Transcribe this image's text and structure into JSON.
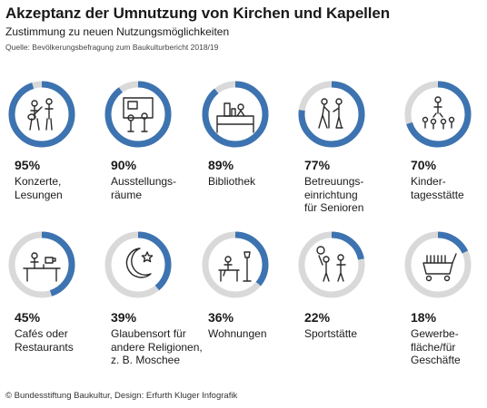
{
  "header": {
    "title": "Akzeptanz der Umnutzung von Kirchen und Kapellen",
    "subtitle": "Zustimmung zu neuen Nutzungsmöglichkeiten",
    "source": "Quelle: Bevölkerungsbefragung zum Baukulturbericht 2018/19"
  },
  "footer": {
    "credit": "© Bundesstiftung Baukultur, Design: Erfurth Kluger Infografik"
  },
  "colors": {
    "fill": "#3d73b0",
    "track": "#d9d9d9",
    "icon": "#2a2a2a"
  },
  "chart_data": {
    "type": "pie",
    "title": "Akzeptanz der Umnutzung von Kirchen und Kapellen",
    "subtitle": "Zustimmung zu neuen Nutzungsmöglichkeiten",
    "unit": "%",
    "items": [
      {
        "value": 95,
        "value_label": "95%",
        "label_lines": [
          "Konzerte,",
          "Lesungen"
        ],
        "icon": "concert-icon"
      },
      {
        "value": 90,
        "value_label": "90%",
        "label_lines": [
          "Ausstellungs-",
          "räume"
        ],
        "icon": "exhibition-icon"
      },
      {
        "value": 89,
        "value_label": "89%",
        "label_lines": [
          "Bibliothek"
        ],
        "icon": "library-icon"
      },
      {
        "value": 77,
        "value_label": "77%",
        "label_lines": [
          "Betreuungs-",
          "einrichtung",
          "für Senioren"
        ],
        "icon": "senior-care-icon"
      },
      {
        "value": 70,
        "value_label": "70%",
        "label_lines": [
          "Kinder-",
          "tagesstätte"
        ],
        "icon": "kindergarten-icon"
      },
      {
        "value": 45,
        "value_label": "45%",
        "label_lines": [
          "Cafés oder",
          "Restaurants"
        ],
        "icon": "cafe-icon"
      },
      {
        "value": 39,
        "value_label": "39%",
        "label_lines": [
          "Glaubensort für",
          "andere Religionen,",
          "z. B. Moschee"
        ],
        "icon": "crescent-star-icon"
      },
      {
        "value": 36,
        "value_label": "36%",
        "label_lines": [
          "Wohnungen"
        ],
        "icon": "housing-icon"
      },
      {
        "value": 22,
        "value_label": "22%",
        "label_lines": [
          "Sportstätte"
        ],
        "icon": "sports-icon"
      },
      {
        "value": 18,
        "value_label": "18%",
        "label_lines": [
          "Gewerbe-",
          "fläche/für",
          "Geschäfte"
        ],
        "icon": "commerce-icon"
      }
    ]
  }
}
